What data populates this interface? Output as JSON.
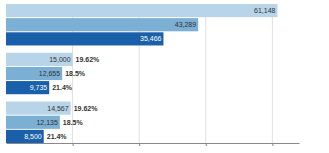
{
  "chart_data": {
    "type": "bar",
    "orientation": "horizontal",
    "categories": [
      null,
      null,
      null
    ],
    "series": [
      {
        "color": "#b8d4e8",
        "values": [
          61148,
          15000,
          14567
        ],
        "value_labels": [
          "61,148",
          "15,000",
          "14,567"
        ],
        "pct_labels": [
          null,
          "19.62%",
          "19.62%"
        ]
      },
      {
        "color": "#7bafd4",
        "values": [
          43289,
          12655,
          12135
        ],
        "value_labels": [
          "43,289",
          "12,655",
          "12,135"
        ],
        "pct_labels": [
          null,
          "18.5%",
          "18.5%"
        ]
      },
      {
        "color": "#1a5faa",
        "values": [
          35466,
          9735,
          8500
        ],
        "value_labels": [
          "35,466",
          "9,735",
          "8,500"
        ],
        "pct_labels": [
          null,
          "21.4%",
          "21.4%"
        ]
      }
    ],
    "xlim": [
      0,
      66000
    ],
    "xticks": [
      15000,
      30000,
      45000,
      60000
    ],
    "grid": true,
    "tick_labels": false,
    "data_labels": true
  }
}
